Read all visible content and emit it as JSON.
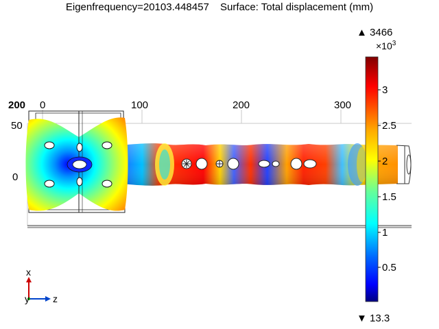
{
  "header": {
    "eigenfrequency": "Eigenfrequency=20103.448457",
    "surface_label": "Surface: Total displacement (mm)"
  },
  "axes": {
    "top_ticks": [
      "0",
      "100",
      "200",
      "300"
    ],
    "left_ticks": [
      "50",
      "0"
    ],
    "corner_label": "200"
  },
  "colorbar": {
    "max_marker": "▲ 3466",
    "multiplier_base": "×10",
    "multiplier_exp": "3",
    "tick_labels": [
      "3",
      "2.5",
      "2",
      "1.5",
      "1",
      "0.5"
    ],
    "min_marker": "▼ 13.3",
    "colors": [
      "#800000",
      "#ff0000",
      "#ffb000",
      "#ffff00",
      "#80ff80",
      "#00ffff",
      "#0080ff",
      "#0000ff",
      "#000080"
    ]
  },
  "triad": {
    "x_label": "x",
    "y_label": "y",
    "z_label": "z",
    "x_color": "#cc0000",
    "y_color": "#00aa00",
    "z_color": "#0044cc"
  }
}
